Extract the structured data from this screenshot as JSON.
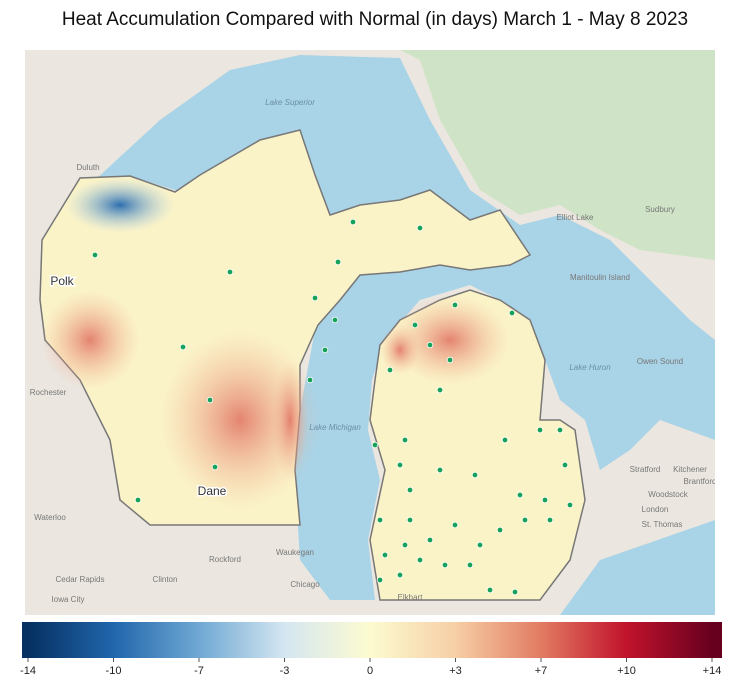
{
  "title": "Heat Accumulation Compared with Normal (in days) March 1 - May 8 2023",
  "map_labels": {
    "counties": [
      "Polk",
      "Dane"
    ],
    "lakes": [
      "Lake Superior",
      "Lake Michigan",
      "Lake Huron"
    ],
    "places": [
      "Duluth",
      "Rochester",
      "Waterloo",
      "Cedar Rapids",
      "Iowa City",
      "Clinton",
      "Rockford",
      "Chicago",
      "Waukegan",
      "Elkhart",
      "Sudbury",
      "Elliot Lake",
      "Manitoulin Island",
      "Owen Sound",
      "Stratford",
      "Kitchener",
      "Woodstock",
      "London",
      "St. Thomas",
      "Brantford"
    ]
  },
  "colorbar": {
    "lim": [
      -14,
      14
    ],
    "ticks": [
      -14,
      -10,
      -7,
      -3,
      0,
      {
        "value": 3,
        "label": "+3"
      },
      {
        "value": 7,
        "label": "+7"
      },
      {
        "value": 10,
        "label": "+10"
      },
      {
        "value": 14,
        "label": "+14"
      }
    ],
    "colors": [
      "#053061",
      "#2166ac",
      "#6fa8d3",
      "#d4e6f1",
      "#fdfbd0",
      "#f6cfa6",
      "#e27b62",
      "#c1132c",
      "#67001f"
    ]
  }
}
